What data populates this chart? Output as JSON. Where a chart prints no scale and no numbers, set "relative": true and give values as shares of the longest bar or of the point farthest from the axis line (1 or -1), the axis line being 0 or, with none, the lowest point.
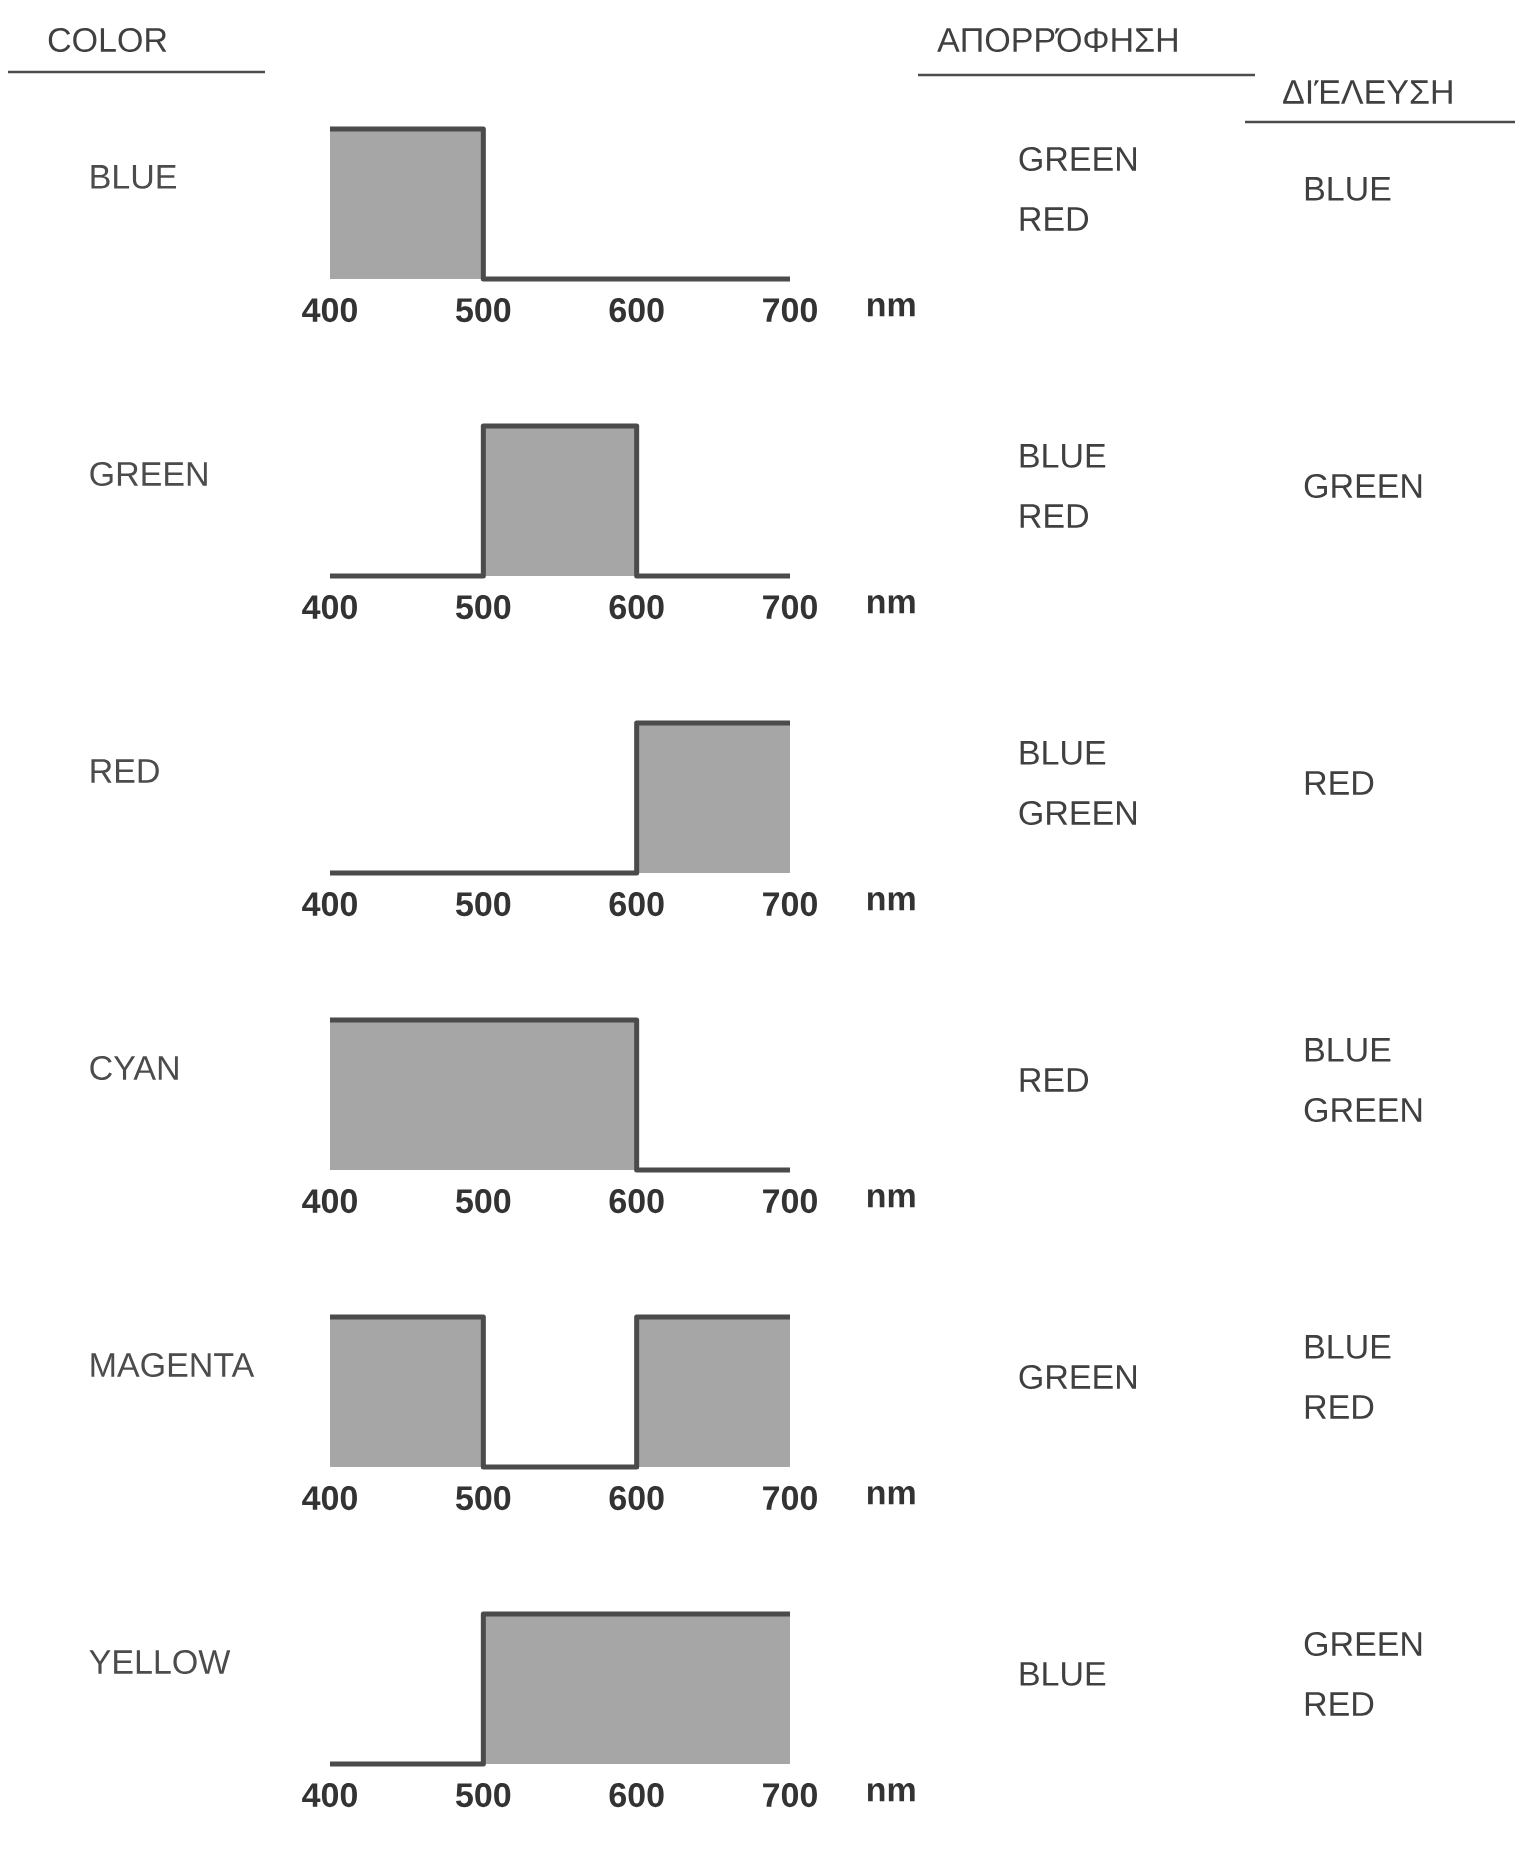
{
  "chart_data": [
    {
      "type": "other",
      "title": "COLOR",
      "annotations": [
        "ΑΠΟΡΡΌΦΗΣΗ",
        "ΔΙΈΛΕΥΣΗ"
      ]
    },
    {
      "type": "area",
      "title": "BLUE",
      "x": [
        400,
        500,
        500,
        700
      ],
      "values": [
        1,
        1,
        0,
        0
      ],
      "relative": true,
      "xlim": [
        400,
        700
      ],
      "xticks": [
        400,
        500,
        600,
        700
      ],
      "xlabel": "nm",
      "color": "#a6a6a6",
      "annotations": [
        "GREEN",
        "RED",
        "BLUE"
      ]
    },
    {
      "type": "area",
      "title": "GREEN",
      "x": [
        400,
        500,
        500,
        600,
        600,
        700
      ],
      "values": [
        0,
        0,
        1,
        1,
        0,
        0
      ],
      "relative": true,
      "xlim": [
        400,
        700
      ],
      "xticks": [
        400,
        500,
        600,
        700
      ],
      "xlabel": "nm",
      "color": "#a6a6a6",
      "annotations": [
        "BLUE",
        "RED",
        "GREEN"
      ]
    },
    {
      "type": "area",
      "title": "RED",
      "x": [
        400,
        600,
        600,
        700
      ],
      "values": [
        0,
        0,
        1,
        1
      ],
      "relative": true,
      "xlim": [
        400,
        700
      ],
      "xticks": [
        400,
        500,
        600,
        700
      ],
      "xlabel": "nm",
      "color": "#a6a6a6",
      "annotations": [
        "BLUE",
        "GREEN",
        "RED"
      ]
    },
    {
      "type": "area",
      "title": "CYAN",
      "x": [
        400,
        600,
        600,
        700
      ],
      "values": [
        1,
        1,
        0,
        0
      ],
      "relative": true,
      "xlim": [
        400,
        700
      ],
      "xticks": [
        400,
        500,
        600,
        700
      ],
      "xlabel": "nm",
      "color": "#a6a6a6",
      "annotations": [
        "RED",
        "BLUE",
        "GREEN"
      ]
    },
    {
      "type": "area",
      "title": "MAGENTA",
      "x": [
        400,
        500,
        500,
        600,
        600,
        700
      ],
      "values": [
        1,
        1,
        0,
        0,
        1,
        1
      ],
      "relative": true,
      "xlim": [
        400,
        700
      ],
      "xticks": [
        400,
        500,
        600,
        700
      ],
      "xlabel": "nm",
      "color": "#a6a6a6",
      "annotations": [
        "GREEN",
        "BLUE",
        "RED"
      ]
    },
    {
      "type": "area",
      "title": "YELLOW",
      "x": [
        400,
        500,
        500,
        700
      ],
      "values": [
        0,
        0,
        1,
        1
      ],
      "relative": true,
      "xlim": [
        400,
        700
      ],
      "xticks": [
        400,
        500,
        600,
        700
      ],
      "xlabel": "nm",
      "color": "#a6a6a6",
      "annotations": [
        "BLUE",
        "GREEN",
        "RED"
      ]
    }
  ]
}
